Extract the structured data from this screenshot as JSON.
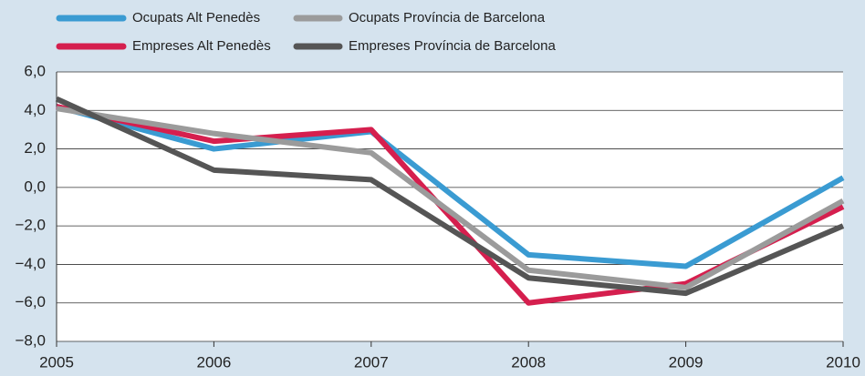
{
  "chart_data": {
    "type": "line",
    "x": [
      2005,
      2006,
      2007,
      2008,
      2009,
      2010
    ],
    "xlim": [
      2005,
      2010
    ],
    "xticks": [
      2005,
      2006,
      2007,
      2008,
      2009,
      2010
    ],
    "ylim": [
      -8,
      6
    ],
    "yticks": [
      {
        "value": -8,
        "label": "−8,0"
      },
      {
        "value": -6,
        "label": "−6,0"
      },
      {
        "value": -4,
        "label": "−4,0"
      },
      {
        "value": -2,
        "label": "−2,0"
      },
      {
        "value": 0,
        "label": "0,0"
      },
      {
        "value": 2,
        "label": "2,0"
      },
      {
        "value": 4,
        "label": "4,0"
      },
      {
        "value": 6,
        "label": "6,0"
      }
    ],
    "grid": true,
    "series": [
      {
        "name": "Ocupats Alt Penedès",
        "color": "#3a9bd2",
        "values": [
          4.2,
          2.0,
          2.9,
          -3.5,
          -4.1,
          0.5
        ]
      },
      {
        "name": "Empreses Alt Penedès",
        "color": "#d51f4e",
        "values": [
          4.2,
          2.4,
          3.0,
          -6.0,
          -5.0,
          -1.0
        ]
      },
      {
        "name": "Ocupats Província de Barcelona",
        "color": "#9b9b9b",
        "values": [
          4.1,
          2.8,
          1.8,
          -4.3,
          -5.2,
          -0.7
        ]
      },
      {
        "name": "Empreses Província de Barcelona",
        "color": "#555555",
        "values": [
          4.6,
          0.9,
          0.4,
          -4.7,
          -5.5,
          -2.0
        ]
      }
    ]
  }
}
